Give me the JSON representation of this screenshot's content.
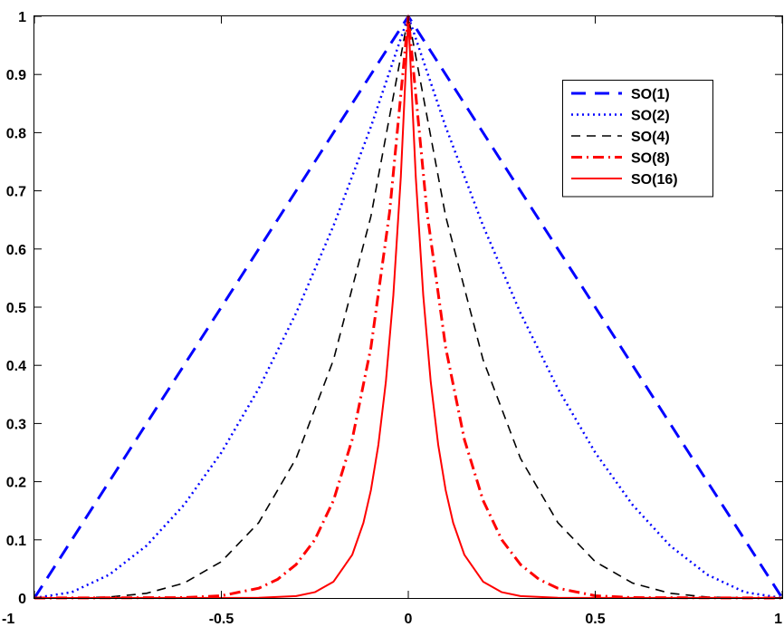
{
  "chart_data": {
    "type": "line",
    "title": "",
    "xlabel": "",
    "ylabel": "",
    "xlim": [
      -1,
      1
    ],
    "ylim": [
      0,
      1
    ],
    "xticks": [
      "-1",
      "-0.5",
      "0",
      "0.5",
      "1"
    ],
    "xtick_values": [
      -1,
      -0.5,
      0,
      0.5,
      1
    ],
    "yticks": [
      "0",
      "0.1",
      "0.2",
      "0.3",
      "0.4",
      "0.5",
      "0.6",
      "0.7",
      "0.8",
      "0.9",
      "1"
    ],
    "ytick_values": [
      0,
      0.1,
      0.2,
      0.3,
      0.4,
      0.5,
      0.6,
      0.7,
      0.8,
      0.9,
      1
    ],
    "grid": false,
    "legend_position": "top-right",
    "series": [
      {
        "name": "SO(1)",
        "color": "#0000ff",
        "style": "dashed-thick",
        "x": [
          -1,
          -0.75,
          -0.5,
          -0.25,
          0,
          0.25,
          0.5,
          0.75,
          1
        ],
        "y": [
          0,
          0.25,
          0.5,
          0.75,
          1,
          0.75,
          0.5,
          0.25,
          0
        ]
      },
      {
        "name": "SO(2)",
        "color": "#0000ff",
        "style": "dotted",
        "x": [
          -1,
          -0.9,
          -0.8,
          -0.7,
          -0.6,
          -0.5,
          -0.4,
          -0.3,
          -0.2,
          -0.1,
          0,
          0.1,
          0.2,
          0.3,
          0.4,
          0.5,
          0.6,
          0.7,
          0.8,
          0.9,
          1
        ],
        "y": [
          0,
          0.01,
          0.04,
          0.09,
          0.16,
          0.25,
          0.36,
          0.49,
          0.64,
          0.81,
          1,
          0.81,
          0.64,
          0.49,
          0.36,
          0.25,
          0.16,
          0.09,
          0.04,
          0.01,
          0
        ]
      },
      {
        "name": "SO(4)",
        "color": "#000000",
        "style": "dashed",
        "x": [
          -1,
          -0.9,
          -0.8,
          -0.7,
          -0.6,
          -0.5,
          -0.4,
          -0.3,
          -0.2,
          -0.1,
          0,
          0.1,
          0.2,
          0.3,
          0.4,
          0.5,
          0.6,
          0.7,
          0.8,
          0.9,
          1
        ],
        "y": [
          0,
          0.0001,
          0.0016,
          0.0081,
          0.0256,
          0.0625,
          0.1296,
          0.2401,
          0.4096,
          0.6561,
          1,
          0.6561,
          0.4096,
          0.2401,
          0.1296,
          0.0625,
          0.0256,
          0.0081,
          0.0016,
          0.0001,
          0
        ]
      },
      {
        "name": "SO(8)",
        "color": "#ff0000",
        "style": "dashdot",
        "x": [
          -1,
          -0.6,
          -0.5,
          -0.4,
          -0.35,
          -0.3,
          -0.25,
          -0.2,
          -0.15,
          -0.1,
          -0.05,
          0,
          0.05,
          0.1,
          0.15,
          0.2,
          0.25,
          0.3,
          0.35,
          0.4,
          0.5,
          0.6,
          1
        ],
        "y": [
          0,
          0.0007,
          0.0039,
          0.0168,
          0.0319,
          0.0576,
          0.1001,
          0.1678,
          0.2725,
          0.4305,
          0.6634,
          1,
          0.6634,
          0.4305,
          0.2725,
          0.1678,
          0.1001,
          0.0576,
          0.0319,
          0.0168,
          0.0039,
          0.0007,
          0
        ]
      },
      {
        "name": "SO(16)",
        "color": "#ff0000",
        "style": "solid",
        "x": [
          -1,
          -0.4,
          -0.3,
          -0.25,
          -0.2,
          -0.15,
          -0.12,
          -0.1,
          -0.08,
          -0.06,
          -0.04,
          -0.02,
          0,
          0.02,
          0.04,
          0.06,
          0.08,
          0.1,
          0.12,
          0.15,
          0.2,
          0.25,
          0.3,
          0.4,
          1
        ],
        "y": [
          0,
          0.0003,
          0.0033,
          0.01,
          0.0281,
          0.0742,
          0.1293,
          0.1853,
          0.2634,
          0.3716,
          0.5204,
          0.7238,
          1,
          0.7238,
          0.5204,
          0.3716,
          0.2634,
          0.1853,
          0.1293,
          0.0742,
          0.0281,
          0.01,
          0.0033,
          0.0003,
          0
        ]
      }
    ]
  }
}
